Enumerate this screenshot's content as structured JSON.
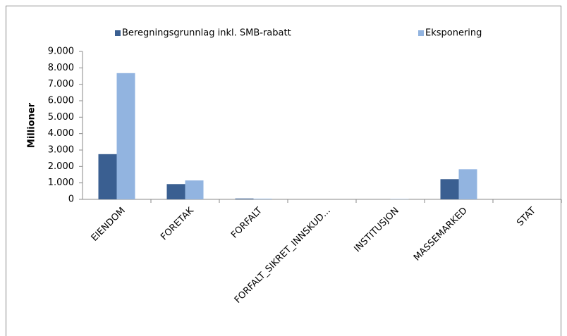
{
  "chart_data": {
    "type": "bar",
    "y_label": "Millioner",
    "categories": [
      "EIENDOM",
      "FORETAK",
      "FORFALT",
      "FORFALT_SIKRET_INNSKUD...",
      "INSTITUSJON",
      "MASSEMARKED",
      "STAT"
    ],
    "series": [
      {
        "name": "Beregningsgrunnlag inkl. SMB-rabatt",
        "color": "#3a5f91",
        "values": [
          2750,
          930,
          50,
          0,
          0,
          1230,
          0
        ]
      },
      {
        "name": "Eksponering",
        "color": "#92b4e0",
        "values": [
          7680,
          1150,
          40,
          0,
          20,
          1830,
          0
        ]
      }
    ],
    "ylim": [
      0,
      9000
    ],
    "yticks": [
      0,
      {
        "value": 1000,
        "label": "1.000"
      },
      {
        "value": 2000,
        "label": "2.000"
      },
      {
        "value": 3000,
        "label": "3.000"
      },
      {
        "value": 4000,
        "label": "4.000"
      },
      {
        "value": 5000,
        "label": "5.000"
      },
      {
        "value": 6000,
        "label": "6.000"
      },
      {
        "value": 7000,
        "label": "7.000"
      },
      {
        "value": 8000,
        "label": "8.000"
      },
      {
        "value": 9000,
        "label": "9.000"
      }
    ],
    "legend": "top"
  }
}
